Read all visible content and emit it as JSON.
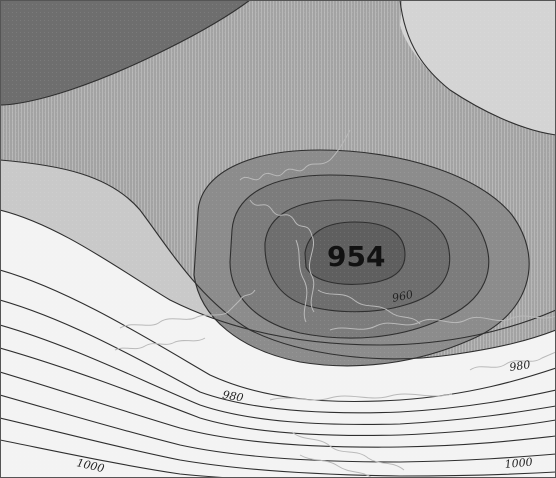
{
  "map": {
    "low_center_value": "954",
    "isobar_labels": [
      {
        "id": "960",
        "text": "960"
      },
      {
        "id": "980-left",
        "text": "980"
      },
      {
        "id": "980-right",
        "text": "980"
      },
      {
        "id": "1000-left",
        "text": "1000"
      },
      {
        "id": "1000-right",
        "text": "1000"
      }
    ],
    "colors": {
      "low_core": "#5f5f5f",
      "ring_1": "#6e6e6e",
      "ring_2": "#7c7c7c",
      "ring_3": "#8c8c8c",
      "mid_field": "#a3a3a3",
      "outer_field": "#c9c9c9",
      "high_field": "#f3f3f3",
      "dark_corner": "#6e6e6e",
      "light_corner": "#d4d4d4"
    }
  }
}
